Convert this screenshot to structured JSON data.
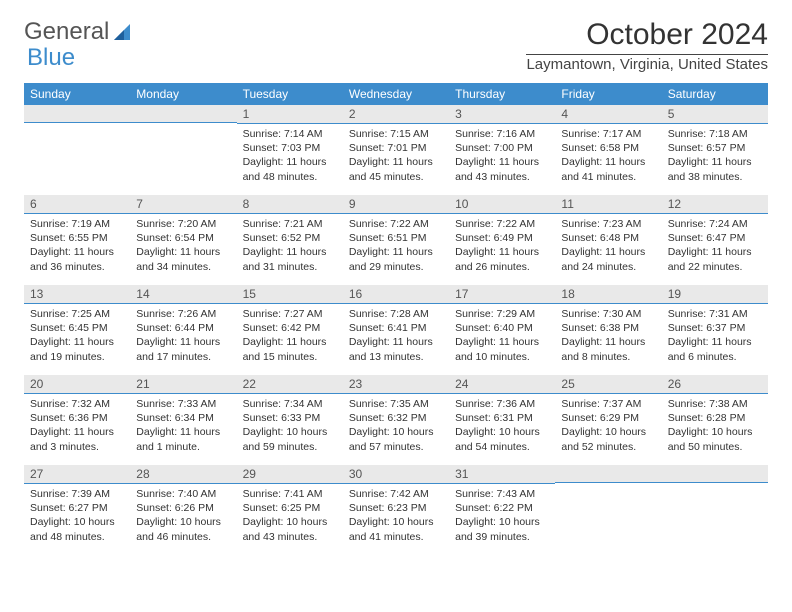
{
  "logo": {
    "text_general": "General",
    "text_blue": "Blue"
  },
  "title": "October 2024",
  "location": "Laymantown, Virginia, United States",
  "colors": {
    "header_bg": "#3d8ccc",
    "daynum_bg": "#e9e9e9",
    "border": "#3d8ccc"
  },
  "day_headers": [
    "Sunday",
    "Monday",
    "Tuesday",
    "Wednesday",
    "Thursday",
    "Friday",
    "Saturday"
  ],
  "weeks": [
    [
      {
        "empty": true
      },
      {
        "empty": true
      },
      {
        "day": "1",
        "sunrise": "Sunrise: 7:14 AM",
        "sunset": "Sunset: 7:03 PM",
        "daylight": "Daylight: 11 hours and 48 minutes."
      },
      {
        "day": "2",
        "sunrise": "Sunrise: 7:15 AM",
        "sunset": "Sunset: 7:01 PM",
        "daylight": "Daylight: 11 hours and 45 minutes."
      },
      {
        "day": "3",
        "sunrise": "Sunrise: 7:16 AM",
        "sunset": "Sunset: 7:00 PM",
        "daylight": "Daylight: 11 hours and 43 minutes."
      },
      {
        "day": "4",
        "sunrise": "Sunrise: 7:17 AM",
        "sunset": "Sunset: 6:58 PM",
        "daylight": "Daylight: 11 hours and 41 minutes."
      },
      {
        "day": "5",
        "sunrise": "Sunrise: 7:18 AM",
        "sunset": "Sunset: 6:57 PM",
        "daylight": "Daylight: 11 hours and 38 minutes."
      }
    ],
    [
      {
        "day": "6",
        "sunrise": "Sunrise: 7:19 AM",
        "sunset": "Sunset: 6:55 PM",
        "daylight": "Daylight: 11 hours and 36 minutes."
      },
      {
        "day": "7",
        "sunrise": "Sunrise: 7:20 AM",
        "sunset": "Sunset: 6:54 PM",
        "daylight": "Daylight: 11 hours and 34 minutes."
      },
      {
        "day": "8",
        "sunrise": "Sunrise: 7:21 AM",
        "sunset": "Sunset: 6:52 PM",
        "daylight": "Daylight: 11 hours and 31 minutes."
      },
      {
        "day": "9",
        "sunrise": "Sunrise: 7:22 AM",
        "sunset": "Sunset: 6:51 PM",
        "daylight": "Daylight: 11 hours and 29 minutes."
      },
      {
        "day": "10",
        "sunrise": "Sunrise: 7:22 AM",
        "sunset": "Sunset: 6:49 PM",
        "daylight": "Daylight: 11 hours and 26 minutes."
      },
      {
        "day": "11",
        "sunrise": "Sunrise: 7:23 AM",
        "sunset": "Sunset: 6:48 PM",
        "daylight": "Daylight: 11 hours and 24 minutes."
      },
      {
        "day": "12",
        "sunrise": "Sunrise: 7:24 AM",
        "sunset": "Sunset: 6:47 PM",
        "daylight": "Daylight: 11 hours and 22 minutes."
      }
    ],
    [
      {
        "day": "13",
        "sunrise": "Sunrise: 7:25 AM",
        "sunset": "Sunset: 6:45 PM",
        "daylight": "Daylight: 11 hours and 19 minutes."
      },
      {
        "day": "14",
        "sunrise": "Sunrise: 7:26 AM",
        "sunset": "Sunset: 6:44 PM",
        "daylight": "Daylight: 11 hours and 17 minutes."
      },
      {
        "day": "15",
        "sunrise": "Sunrise: 7:27 AM",
        "sunset": "Sunset: 6:42 PM",
        "daylight": "Daylight: 11 hours and 15 minutes."
      },
      {
        "day": "16",
        "sunrise": "Sunrise: 7:28 AM",
        "sunset": "Sunset: 6:41 PM",
        "daylight": "Daylight: 11 hours and 13 minutes."
      },
      {
        "day": "17",
        "sunrise": "Sunrise: 7:29 AM",
        "sunset": "Sunset: 6:40 PM",
        "daylight": "Daylight: 11 hours and 10 minutes."
      },
      {
        "day": "18",
        "sunrise": "Sunrise: 7:30 AM",
        "sunset": "Sunset: 6:38 PM",
        "daylight": "Daylight: 11 hours and 8 minutes."
      },
      {
        "day": "19",
        "sunrise": "Sunrise: 7:31 AM",
        "sunset": "Sunset: 6:37 PM",
        "daylight": "Daylight: 11 hours and 6 minutes."
      }
    ],
    [
      {
        "day": "20",
        "sunrise": "Sunrise: 7:32 AM",
        "sunset": "Sunset: 6:36 PM",
        "daylight": "Daylight: 11 hours and 3 minutes."
      },
      {
        "day": "21",
        "sunrise": "Sunrise: 7:33 AM",
        "sunset": "Sunset: 6:34 PM",
        "daylight": "Daylight: 11 hours and 1 minute."
      },
      {
        "day": "22",
        "sunrise": "Sunrise: 7:34 AM",
        "sunset": "Sunset: 6:33 PM",
        "daylight": "Daylight: 10 hours and 59 minutes."
      },
      {
        "day": "23",
        "sunrise": "Sunrise: 7:35 AM",
        "sunset": "Sunset: 6:32 PM",
        "daylight": "Daylight: 10 hours and 57 minutes."
      },
      {
        "day": "24",
        "sunrise": "Sunrise: 7:36 AM",
        "sunset": "Sunset: 6:31 PM",
        "daylight": "Daylight: 10 hours and 54 minutes."
      },
      {
        "day": "25",
        "sunrise": "Sunrise: 7:37 AM",
        "sunset": "Sunset: 6:29 PM",
        "daylight": "Daylight: 10 hours and 52 minutes."
      },
      {
        "day": "26",
        "sunrise": "Sunrise: 7:38 AM",
        "sunset": "Sunset: 6:28 PM",
        "daylight": "Daylight: 10 hours and 50 minutes."
      }
    ],
    [
      {
        "day": "27",
        "sunrise": "Sunrise: 7:39 AM",
        "sunset": "Sunset: 6:27 PM",
        "daylight": "Daylight: 10 hours and 48 minutes."
      },
      {
        "day": "28",
        "sunrise": "Sunrise: 7:40 AM",
        "sunset": "Sunset: 6:26 PM",
        "daylight": "Daylight: 10 hours and 46 minutes."
      },
      {
        "day": "29",
        "sunrise": "Sunrise: 7:41 AM",
        "sunset": "Sunset: 6:25 PM",
        "daylight": "Daylight: 10 hours and 43 minutes."
      },
      {
        "day": "30",
        "sunrise": "Sunrise: 7:42 AM",
        "sunset": "Sunset: 6:23 PM",
        "daylight": "Daylight: 10 hours and 41 minutes."
      },
      {
        "day": "31",
        "sunrise": "Sunrise: 7:43 AM",
        "sunset": "Sunset: 6:22 PM",
        "daylight": "Daylight: 10 hours and 39 minutes."
      },
      {
        "empty": true
      },
      {
        "empty": true
      }
    ]
  ]
}
